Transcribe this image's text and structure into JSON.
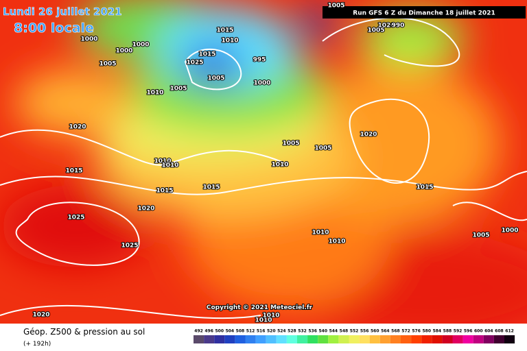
{
  "header": {
    "date": "Lundi 26 juillet 2021",
    "time": "8:00 locale",
    "run": "Run GFS 6 Z du Dimanche 18 juillet 2021"
  },
  "map": {
    "copyright": "Copyright © 2021 Meteociel.fr",
    "isobar_labels": [
      "1015",
      "1010",
      "1000",
      "1000",
      "1000",
      "1005",
      "1015",
      "1025",
      "995",
      "1000",
      "1005",
      "1005",
      "1010",
      "1020",
      "1015",
      "1010",
      "1010",
      "1015",
      "1015",
      "1020",
      "1025",
      "1025",
      "1020",
      "1005",
      "1005",
      "1010",
      "1020",
      "1015",
      "1005",
      "1000",
      "1010",
      "1010",
      "1005",
      "1020",
      "990",
      "1005",
      "1010",
      "1010"
    ]
  },
  "footer": {
    "title": "Géop. Z500 & pression au sol",
    "lead": "(+ 192h)"
  },
  "colorbar": {
    "ticks": [
      492,
      496,
      500,
      504,
      508,
      512,
      516,
      520,
      524,
      528,
      532,
      536,
      540,
      544,
      548,
      552,
      556,
      560,
      564,
      568,
      572,
      576,
      580,
      584,
      588,
      592,
      596,
      600,
      604,
      608,
      612
    ],
    "colors": [
      "#5a4a6a",
      "#4b3a8a",
      "#3030a0",
      "#2040c0",
      "#2060e0",
      "#3080f0",
      "#40a0ff",
      "#50c0ff",
      "#60e0ff",
      "#60ffe0",
      "#40f0a0",
      "#30e060",
      "#60e040",
      "#a0f040",
      "#d0f050",
      "#f0f060",
      "#ffe060",
      "#ffc040",
      "#ffa030",
      "#ff8020",
      "#ff6010",
      "#ff4000",
      "#f02000",
      "#e01000",
      "#d00020",
      "#e00060",
      "#f000a0",
      "#c00080",
      "#800060",
      "#400030",
      "#100010"
    ]
  }
}
